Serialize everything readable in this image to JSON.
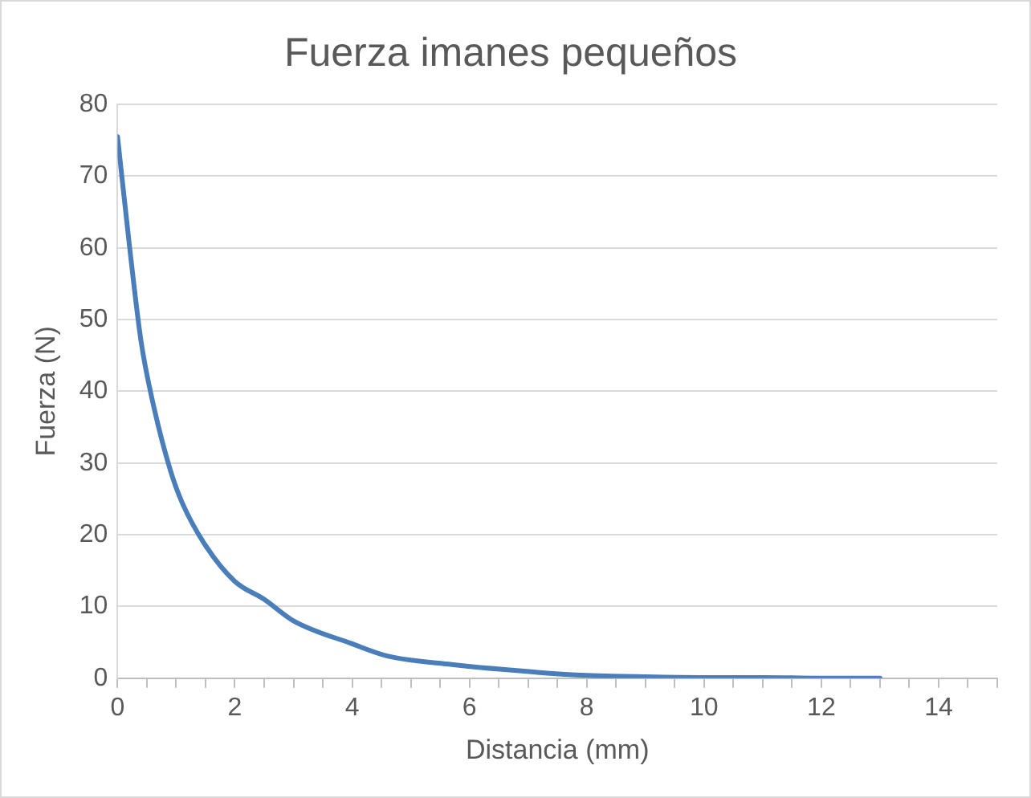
{
  "chart_data": {
    "type": "line",
    "title": "Fuerza imanes pequeños",
    "xlabel": "Distancia (mm)",
    "ylabel": "Fuerza (N)",
    "x": [
      0,
      0.2,
      0.4,
      0.6,
      0.9,
      1.1,
      1.5,
      2,
      2.5,
      3,
      4,
      4.6,
      5.7,
      7.2,
      8,
      9,
      10,
      11,
      12,
      13
    ],
    "series": [
      {
        "color": "#4a7ebb",
        "values": [
          75.5,
          60.5,
          47,
          38.5,
          29,
          24.5,
          18.5,
          13.5,
          11,
          8,
          4.8,
          3.1,
          1.9,
          0.8,
          0.4,
          0.2,
          0.1,
          0.1,
          0,
          0
        ]
      }
    ],
    "xlim": [
      0,
      15
    ],
    "xticks": [
      0,
      {
        "value": 0.5,
        "label": null
      },
      2,
      {
        "value": 1,
        "label": null
      },
      {
        "value": 1.5,
        "label": null
      },
      {
        "value": 2.5,
        "label": null
      },
      {
        "value": 3,
        "label": null
      },
      {
        "value": 3.5,
        "label": null
      },
      4,
      {
        "value": 4.5,
        "label": null
      },
      {
        "value": 5,
        "label": null
      },
      {
        "value": 5.5,
        "label": null
      },
      6,
      {
        "value": 6.5,
        "label": null
      },
      {
        "value": 7,
        "label": null
      },
      {
        "value": 7.5,
        "label": null
      },
      8,
      {
        "value": 8.5,
        "label": null
      },
      {
        "value": 9,
        "label": null
      },
      {
        "value": 9.5,
        "label": null
      },
      10,
      {
        "value": 10.5,
        "label": null
      },
      {
        "value": 11,
        "label": null
      },
      {
        "value": 11.5,
        "label": null
      },
      12,
      {
        "value": 12.5,
        "label": null
      },
      {
        "value": 13,
        "label": null
      },
      {
        "value": 13.5,
        "label": null
      },
      14,
      {
        "value": 14.5,
        "label": null
      },
      {
        "value": 15,
        "label": null
      }
    ],
    "ylim": [
      0,
      80
    ],
    "yticks": [
      0,
      10,
      20,
      30,
      40,
      50,
      60,
      70,
      80
    ],
    "grid": "y",
    "legend": false,
    "marker": "none",
    "line_style": "solid"
  }
}
